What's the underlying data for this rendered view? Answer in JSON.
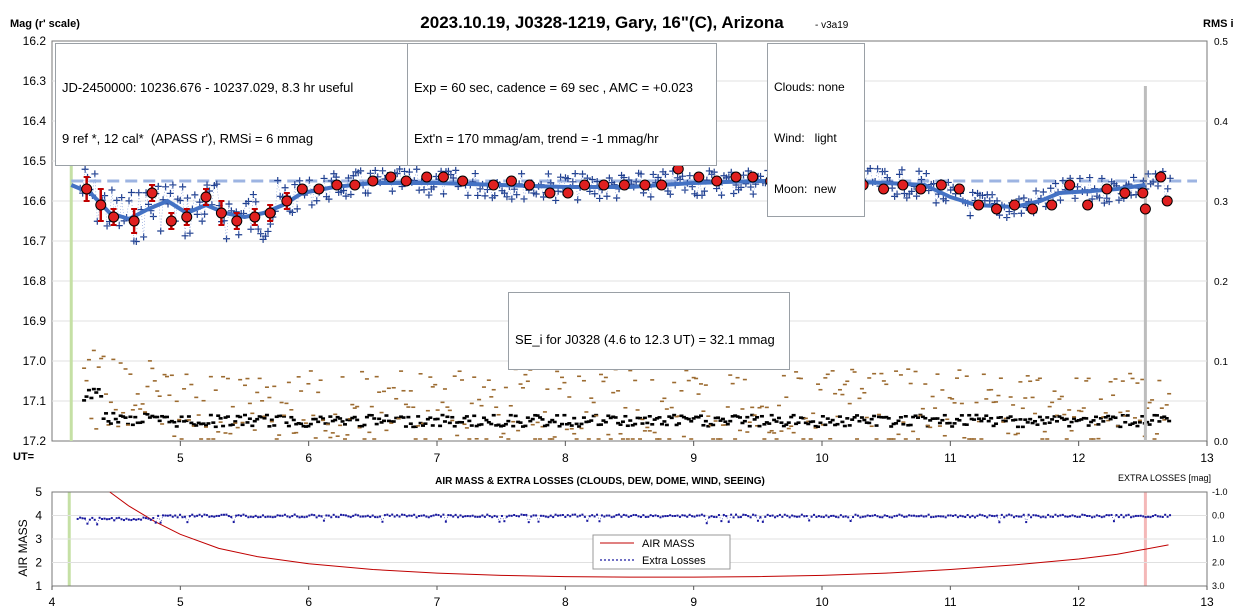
{
  "colors": {
    "fit_line": "#4472c4",
    "dashed_line": "#9db4e2",
    "star_points": "#1f3f8f",
    "binned_fill": "#e02020",
    "errorbar": "#c00000",
    "start_marker": "#c5e0a5",
    "end_marker": "#bdbdbd",
    "airmass_line": "#c00000",
    "losses_points": "#1a1aa0",
    "aux_black": "#000000",
    "aux_brown": "#9c6b30"
  },
  "header": {
    "title": "2023.10.19, J0328-1219, Gary, 16\"(C), Arizona",
    "version": "- v3a19",
    "left_axis_title": "Mag (r' scale)",
    "right_axis_title": "RMS i",
    "ut_label": "UT="
  },
  "info_boxes": {
    "jd_line1": "JD-2450000: 10236.676 - 10237.029, 8.3 hr useful",
    "jd_line2": "9 ref *, 12 cal*  (APASS r'), RMSi = 6 mmag",
    "exp_line1": "Exp = 60 sec, cadence = 69 sec , AMC = +0.023",
    "exp_line2": "Ext'n = 170 mmag/am, trend = -1 mmag/hr",
    "clouds": "Clouds: none",
    "wind": "Wind:   light",
    "moon": "Moon:  new",
    "se_label": "SE_i for J0328 (4.6 to 12.3 UT) = 32.1 mmag"
  },
  "chart_data": [
    {
      "type": "scatter",
      "name": "light-curve",
      "x_range": [
        4,
        13
      ],
      "y_range": [
        16.2,
        17.2
      ],
      "y_inverted": true,
      "right_y_range": [
        0.5,
        0.0
      ],
      "x_ticks": [
        "5",
        "6",
        "7",
        "8",
        "9",
        "10",
        "11",
        "12",
        "13"
      ],
      "y_ticks": [
        "16.2",
        "16.3",
        "16.4",
        "16.5",
        "16.6",
        "16.7",
        "16.8",
        "16.9",
        "17.0",
        "17.1",
        "17.2"
      ],
      "right_ticks": [
        "0.5",
        "0.4",
        "0.3",
        "0.2",
        "0.1",
        "0.0"
      ],
      "reference_mag": 16.55,
      "start_ut": 4.15,
      "end_ut": 12.52,
      "binned": [
        {
          "x": 4.27,
          "y": 16.57,
          "err": 0.03
        },
        {
          "x": 4.38,
          "y": 16.61,
          "err": 0.04
        },
        {
          "x": 4.48,
          "y": 16.64,
          "err": 0.02
        },
        {
          "x": 4.64,
          "y": 16.65,
          "err": 0.03
        },
        {
          "x": 4.78,
          "y": 16.58,
          "err": 0.02
        },
        {
          "x": 4.93,
          "y": 16.65,
          "err": 0.02
        },
        {
          "x": 5.05,
          "y": 16.64,
          "err": 0.02
        },
        {
          "x": 5.2,
          "y": 16.59,
          "err": 0.02
        },
        {
          "x": 5.32,
          "y": 16.63,
          "err": 0.03
        },
        {
          "x": 5.44,
          "y": 16.65,
          "err": 0.02
        },
        {
          "x": 5.58,
          "y": 16.64,
          "err": 0.02
        },
        {
          "x": 5.7,
          "y": 16.63,
          "err": 0.02
        },
        {
          "x": 5.83,
          "y": 16.6,
          "err": 0.02
        },
        {
          "x": 5.95,
          "y": 16.57,
          "err": 0.01
        },
        {
          "x": 6.08,
          "y": 16.57,
          "err": 0.01
        },
        {
          "x": 6.22,
          "y": 16.56,
          "err": 0.01
        },
        {
          "x": 6.36,
          "y": 16.56,
          "err": 0.01
        },
        {
          "x": 6.5,
          "y": 16.55,
          "err": 0.01
        },
        {
          "x": 6.64,
          "y": 16.54,
          "err": 0.01
        },
        {
          "x": 6.76,
          "y": 16.55,
          "err": 0.01
        },
        {
          "x": 6.92,
          "y": 16.54,
          "err": 0.01
        },
        {
          "x": 7.05,
          "y": 16.54,
          "err": 0.01
        },
        {
          "x": 7.2,
          "y": 16.55,
          "err": 0.01
        },
        {
          "x": 7.44,
          "y": 16.56,
          "err": 0.01
        },
        {
          "x": 7.58,
          "y": 16.55,
          "err": 0.01
        },
        {
          "x": 7.72,
          "y": 16.56,
          "err": 0.01
        },
        {
          "x": 7.88,
          "y": 16.58,
          "err": 0.01
        },
        {
          "x": 8.02,
          "y": 16.58,
          "err": 0.01
        },
        {
          "x": 8.15,
          "y": 16.56,
          "err": 0.01
        },
        {
          "x": 8.3,
          "y": 16.56,
          "err": 0.01
        },
        {
          "x": 8.46,
          "y": 16.56,
          "err": 0.01
        },
        {
          "x": 8.62,
          "y": 16.56,
          "err": 0.01
        },
        {
          "x": 8.75,
          "y": 16.56,
          "err": 0.01
        },
        {
          "x": 8.88,
          "y": 16.52,
          "err": 0.01
        },
        {
          "x": 9.04,
          "y": 16.54,
          "err": 0.01
        },
        {
          "x": 9.18,
          "y": 16.55,
          "err": 0.01
        },
        {
          "x": 9.33,
          "y": 16.54,
          "err": 0.01
        },
        {
          "x": 9.46,
          "y": 16.54,
          "err": 0.01
        },
        {
          "x": 9.6,
          "y": 16.55,
          "err": 0.01
        },
        {
          "x": 9.76,
          "y": 16.54,
          "err": 0.01
        },
        {
          "x": 9.88,
          "y": 16.53,
          "err": 0.01
        },
        {
          "x": 10.03,
          "y": 16.53,
          "err": 0.01
        },
        {
          "x": 10.18,
          "y": 16.54,
          "err": 0.01
        },
        {
          "x": 10.32,
          "y": 16.56,
          "err": 0.01
        },
        {
          "x": 10.48,
          "y": 16.57,
          "err": 0.01
        },
        {
          "x": 10.63,
          "y": 16.56,
          "err": 0.01
        },
        {
          "x": 10.77,
          "y": 16.57,
          "err": 0.01
        },
        {
          "x": 10.93,
          "y": 16.56,
          "err": 0.01
        },
        {
          "x": 11.07,
          "y": 16.57,
          "err": 0.01
        },
        {
          "x": 11.22,
          "y": 16.61,
          "err": 0.01
        },
        {
          "x": 11.36,
          "y": 16.62,
          "err": 0.01
        },
        {
          "x": 11.5,
          "y": 16.61,
          "err": 0.01
        },
        {
          "x": 11.64,
          "y": 16.62,
          "err": 0.01
        },
        {
          "x": 11.79,
          "y": 16.61,
          "err": 0.01
        },
        {
          "x": 11.93,
          "y": 16.56,
          "err": 0.01
        },
        {
          "x": 12.07,
          "y": 16.61,
          "err": 0.01
        },
        {
          "x": 12.22,
          "y": 16.57,
          "err": 0.01
        },
        {
          "x": 12.36,
          "y": 16.58,
          "err": 0.01
        },
        {
          "x": 12.5,
          "y": 16.58,
          "err": 0.01
        },
        {
          "x": 12.64,
          "y": 16.54,
          "err": 0.01
        },
        {
          "x": 12.52,
          "y": 16.62,
          "err": 0.01
        },
        {
          "x": 12.69,
          "y": 16.6,
          "err": 0.01
        }
      ],
      "fit": [
        {
          "x": 4.15,
          "y": 16.56
        },
        {
          "x": 4.3,
          "y": 16.58
        },
        {
          "x": 4.45,
          "y": 16.63
        },
        {
          "x": 4.6,
          "y": 16.645
        },
        {
          "x": 4.75,
          "y": 16.62
        },
        {
          "x": 4.9,
          "y": 16.6
        },
        {
          "x": 5.05,
          "y": 16.63
        },
        {
          "x": 5.2,
          "y": 16.61
        },
        {
          "x": 5.35,
          "y": 16.63
        },
        {
          "x": 5.5,
          "y": 16.64
        },
        {
          "x": 5.65,
          "y": 16.63
        },
        {
          "x": 5.8,
          "y": 16.61
        },
        {
          "x": 5.95,
          "y": 16.58
        },
        {
          "x": 6.2,
          "y": 16.565
        },
        {
          "x": 6.5,
          "y": 16.555
        },
        {
          "x": 7.0,
          "y": 16.555
        },
        {
          "x": 7.5,
          "y": 16.56
        },
        {
          "x": 8.0,
          "y": 16.565
        },
        {
          "x": 8.5,
          "y": 16.565
        },
        {
          "x": 9.0,
          "y": 16.555
        },
        {
          "x": 9.5,
          "y": 16.55
        },
        {
          "x": 10.0,
          "y": 16.55
        },
        {
          "x": 10.5,
          "y": 16.555
        },
        {
          "x": 10.8,
          "y": 16.56
        },
        {
          "x": 11.0,
          "y": 16.59
        },
        {
          "x": 11.2,
          "y": 16.61
        },
        {
          "x": 11.5,
          "y": 16.615
        },
        {
          "x": 11.7,
          "y": 16.6
        },
        {
          "x": 11.85,
          "y": 16.58
        },
        {
          "x": 12.1,
          "y": 16.575
        },
        {
          "x": 12.3,
          "y": 16.57
        },
        {
          "x": 12.52,
          "y": 16.56
        }
      ]
    },
    {
      "type": "line",
      "name": "air-mass-and-extra-losses",
      "title": "AIR MASS & EXTRA LOSSES (CLOUDS, DEW, DOME, WIND, SEEING)",
      "ylabel": "AIR MASS",
      "right_label": "EXTRA LOSSES [mag]",
      "x_range": [
        4,
        13
      ],
      "y_range": [
        1,
        5
      ],
      "right_range": [
        -1.0,
        3.0
      ],
      "x_ticks": [
        "4",
        "5",
        "6",
        "7",
        "8",
        "9",
        "10",
        "11",
        "12",
        "13"
      ],
      "y_ticks": [
        "5",
        "4",
        "3",
        "2",
        "1"
      ],
      "right_ticks": [
        "-1.0",
        "0.0",
        "1.0",
        "2.0",
        "3.0"
      ],
      "legend": [
        "AIR MASS",
        "Extra Losses"
      ],
      "airmass": [
        {
          "x": 4.45,
          "y": 5.0
        },
        {
          "x": 4.6,
          "y": 4.4
        },
        {
          "x": 4.8,
          "y": 3.75
        },
        {
          "x": 5.0,
          "y": 3.2
        },
        {
          "x": 5.3,
          "y": 2.6
        },
        {
          "x": 5.6,
          "y": 2.25
        },
        {
          "x": 6.0,
          "y": 1.95
        },
        {
          "x": 6.5,
          "y": 1.7
        },
        {
          "x": 7.0,
          "y": 1.55
        },
        {
          "x": 7.5,
          "y": 1.45
        },
        {
          "x": 8.0,
          "y": 1.4
        },
        {
          "x": 8.5,
          "y": 1.38
        },
        {
          "x": 9.0,
          "y": 1.38
        },
        {
          "x": 9.5,
          "y": 1.4
        },
        {
          "x": 10.0,
          "y": 1.45
        },
        {
          "x": 10.5,
          "y": 1.55
        },
        {
          "x": 11.0,
          "y": 1.7
        },
        {
          "x": 11.5,
          "y": 1.9
        },
        {
          "x": 12.0,
          "y": 2.15
        },
        {
          "x": 12.3,
          "y": 2.35
        },
        {
          "x": 12.7,
          "y": 2.75
        }
      ]
    }
  ]
}
